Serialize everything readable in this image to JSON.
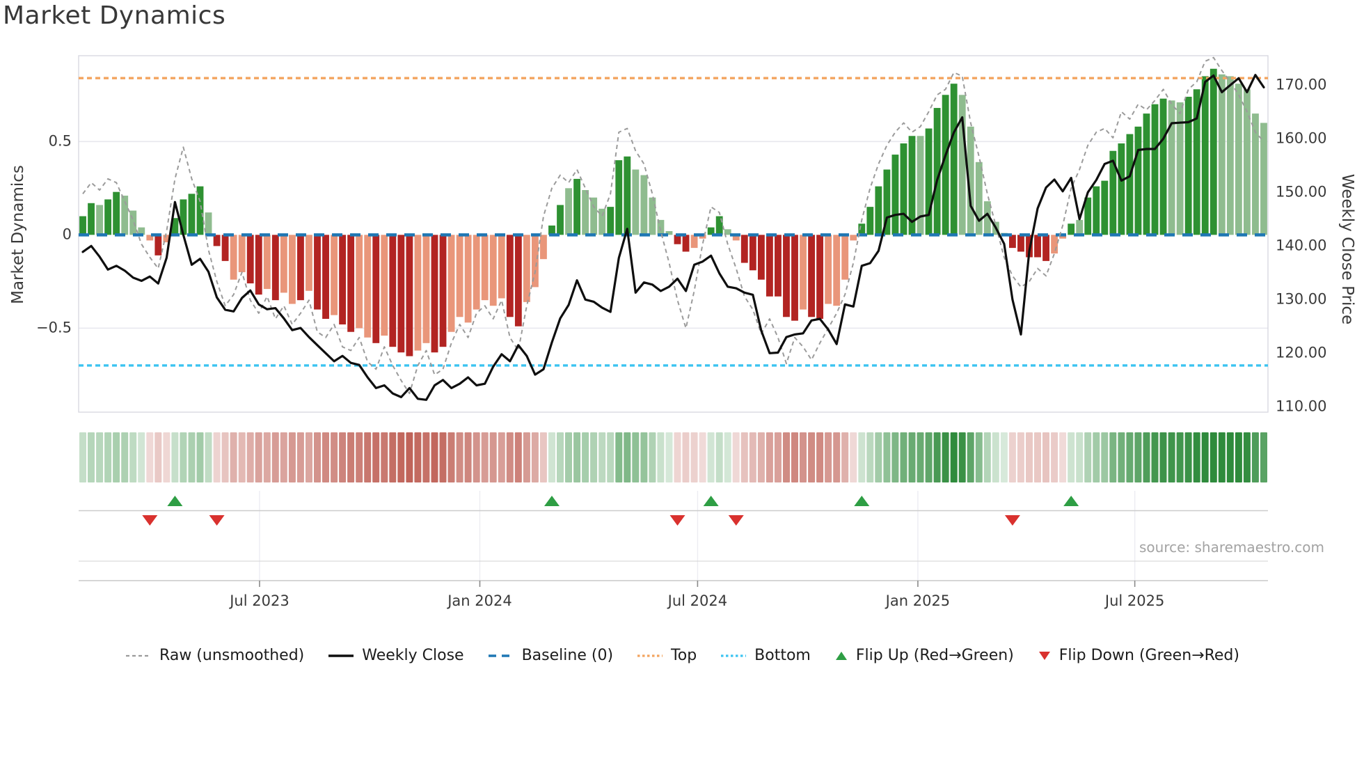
{
  "title": "Market Dynamics",
  "source_credit": "source: sharemaestro.com",
  "axes": {
    "left_label": "Market Dynamics",
    "right_label": "Weekly Close Price",
    "left_ticks": [
      {
        "value": 0.5,
        "label": "0.5"
      },
      {
        "value": 0.0,
        "label": "0"
      },
      {
        "value": -0.5,
        "label": "−0.5"
      }
    ],
    "right_ticks": [
      {
        "value": 170,
        "label": "170.00"
      },
      {
        "value": 160,
        "label": "160.00"
      },
      {
        "value": 150,
        "label": "150.00"
      },
      {
        "value": 140,
        "label": "140.00"
      },
      {
        "value": 130,
        "label": "130.00"
      },
      {
        "value": 120,
        "label": "120.00"
      },
      {
        "value": 110,
        "label": "110.00"
      }
    ],
    "x_ticks": [
      {
        "label": "Jul 2023",
        "week": 21.1
      },
      {
        "label": "Jan 2024",
        "week": 47.4
      },
      {
        "label": "Jul 2024",
        "week": 73.4
      },
      {
        "label": "Jan 2025",
        "week": 99.7
      },
      {
        "label": "Jul 2025",
        "week": 125.6
      }
    ]
  },
  "chart_data": {
    "type": "composite",
    "title": "Market Dynamics",
    "start_date": "2023-02-03",
    "frequency": "weekly",
    "n_weeks": 142,
    "left_ylim": [
      -0.95,
      0.96
    ],
    "right_ylim": [
      109.0,
      175.5
    ],
    "grid": "horizontal at ±0.5 only",
    "legend_position": "bottom center",
    "reference_lines": {
      "baseline": 0.0,
      "top": 0.84,
      "bottom": -0.7
    },
    "series": [
      {
        "name": "Market Dynamics (smoothed oscillator)",
        "type": "bar",
        "axis": "left",
        "values": [
          0.1,
          0.17,
          0.16,
          0.19,
          0.23,
          0.21,
          0.13,
          0.04,
          -0.03,
          -0.11,
          -0.04,
          0.09,
          0.19,
          0.22,
          0.26,
          0.12,
          -0.06,
          -0.14,
          -0.24,
          -0.2,
          -0.26,
          -0.32,
          -0.29,
          -0.35,
          -0.31,
          -0.37,
          -0.35,
          -0.3,
          -0.4,
          -0.45,
          -0.43,
          -0.48,
          -0.52,
          -0.5,
          -0.55,
          -0.58,
          -0.54,
          -0.6,
          -0.63,
          -0.65,
          -0.62,
          -0.58,
          -0.63,
          -0.6,
          -0.52,
          -0.44,
          -0.47,
          -0.4,
          -0.35,
          -0.38,
          -0.34,
          -0.44,
          -0.49,
          -0.36,
          -0.28,
          -0.13,
          0.05,
          0.16,
          0.25,
          0.3,
          0.24,
          0.2,
          0.14,
          0.15,
          0.4,
          0.42,
          0.35,
          0.32,
          0.2,
          0.08,
          0.02,
          -0.05,
          -0.09,
          -0.07,
          -0.02,
          0.04,
          0.1,
          0.03,
          -0.03,
          -0.15,
          -0.19,
          -0.24,
          -0.33,
          -0.33,
          -0.44,
          -0.46,
          -0.4,
          -0.44,
          -0.45,
          -0.37,
          -0.38,
          -0.24,
          -0.03,
          0.06,
          0.15,
          0.26,
          0.35,
          0.43,
          0.49,
          0.53,
          0.53,
          0.57,
          0.68,
          0.75,
          0.81,
          0.75,
          0.58,
          0.39,
          0.18,
          0.07,
          0.01,
          -0.07,
          -0.09,
          -0.12,
          -0.12,
          -0.14,
          -0.1,
          -0.02,
          0.06,
          0.08,
          0.2,
          0.26,
          0.29,
          0.45,
          0.49,
          0.54,
          0.58,
          0.65,
          0.7,
          0.73,
          0.72,
          0.71,
          0.74,
          0.78,
          0.85,
          0.89,
          0.86,
          0.85,
          0.81,
          0.78,
          0.65,
          0.6
        ]
      },
      {
        "name": "Raw (unsmoothed)",
        "type": "line",
        "line_style": "dashed",
        "axis": "left",
        "values": [
          0.22,
          0.28,
          0.24,
          0.3,
          0.28,
          0.18,
          0.08,
          -0.05,
          -0.12,
          -0.18,
          0.02,
          0.3,
          0.47,
          0.3,
          0.18,
          -0.08,
          -0.25,
          -0.38,
          -0.32,
          -0.2,
          -0.35,
          -0.42,
          -0.33,
          -0.45,
          -0.38,
          -0.48,
          -0.42,
          -0.35,
          -0.52,
          -0.55,
          -0.48,
          -0.6,
          -0.62,
          -0.55,
          -0.68,
          -0.72,
          -0.6,
          -0.7,
          -0.78,
          -0.85,
          -0.7,
          -0.62,
          -0.75,
          -0.72,
          -0.58,
          -0.48,
          -0.55,
          -0.42,
          -0.38,
          -0.45,
          -0.35,
          -0.55,
          -0.62,
          -0.38,
          -0.2,
          0.1,
          0.25,
          0.32,
          0.28,
          0.35,
          0.25,
          0.15,
          0.1,
          0.22,
          0.55,
          0.57,
          0.45,
          0.38,
          0.22,
          0.02,
          -0.15,
          -0.35,
          -0.5,
          -0.3,
          -0.05,
          0.15,
          0.12,
          -0.05,
          -0.18,
          -0.33,
          -0.4,
          -0.53,
          -0.45,
          -0.55,
          -0.69,
          -0.55,
          -0.6,
          -0.67,
          -0.58,
          -0.5,
          -0.42,
          -0.32,
          -0.15,
          0.08,
          0.25,
          0.38,
          0.48,
          0.55,
          0.6,
          0.55,
          0.58,
          0.66,
          0.75,
          0.78,
          0.87,
          0.85,
          0.6,
          0.42,
          0.22,
          0.05,
          -0.12,
          -0.22,
          -0.28,
          -0.25,
          -0.18,
          -0.22,
          -0.1,
          0.05,
          0.25,
          0.35,
          0.48,
          0.55,
          0.57,
          0.52,
          0.66,
          0.62,
          0.7,
          0.67,
          0.72,
          0.78,
          0.7,
          0.65,
          0.78,
          0.82,
          0.93,
          0.95,
          0.88,
          0.82,
          0.75,
          0.66,
          0.55,
          0.5
        ]
      },
      {
        "name": "Weekly Close",
        "type": "line",
        "line_style": "solid",
        "axis": "right",
        "values": [
          138.9,
          140.0,
          138.0,
          135.6,
          136.3,
          135.4,
          134.1,
          133.5,
          134.3,
          133.0,
          137.8,
          148.2,
          142.1,
          136.5,
          137.6,
          135.2,
          130.4,
          128.1,
          127.8,
          130.3,
          131.7,
          129.1,
          128.2,
          128.4,
          126.5,
          124.3,
          124.7,
          123.0,
          121.5,
          120.0,
          118.5,
          119.5,
          118.2,
          117.8,
          115.5,
          113.5,
          114.0,
          112.5,
          111.8,
          113.5,
          111.5,
          111.3,
          114.0,
          115.0,
          113.5,
          114.3,
          115.5,
          114.0,
          114.3,
          117.5,
          119.8,
          118.5,
          121.5,
          119.5,
          116.0,
          117.0,
          122.0,
          126.5,
          129.0,
          133.6,
          130.0,
          129.6,
          128.5,
          127.7,
          137.8,
          143.2,
          131.3,
          133.2,
          132.8,
          131.6,
          132.4,
          133.9,
          131.6,
          136.5,
          137.1,
          138.2,
          134.9,
          132.4,
          132.1,
          131.3,
          130.9,
          124.2,
          120.0,
          120.1,
          123.0,
          123.5,
          123.7,
          126.1,
          126.4,
          124.4,
          121.7,
          129.1,
          128.7,
          136.3,
          136.8,
          139.1,
          145.3,
          145.8,
          146.0,
          144.5,
          145.5,
          145.8,
          152.3,
          156.9,
          161.2,
          164.0,
          147.5,
          144.7,
          146.0,
          143.4,
          140.4,
          130.0,
          123.5,
          139.0,
          147.0,
          150.9,
          152.4,
          150.2,
          152.7,
          145.0,
          150.0,
          152.3,
          155.3,
          155.9,
          152.2,
          153.0,
          157.9,
          158.1,
          158.1,
          160.0,
          162.9,
          163.0,
          163.1,
          163.8,
          170.6,
          171.8,
          168.7,
          170.0,
          171.3,
          168.7,
          171.9,
          169.6
        ]
      }
    ],
    "bar_soft_shade": [
      0,
      0,
      1,
      0,
      0,
      1,
      1,
      1,
      1,
      0,
      1,
      0,
      0,
      0,
      0,
      1,
      0,
      0,
      1,
      1,
      0,
      0,
      1,
      0,
      1,
      1,
      0,
      1,
      0,
      0,
      1,
      0,
      0,
      1,
      1,
      0,
      1,
      0,
      0,
      0,
      1,
      1,
      0,
      0,
      1,
      1,
      1,
      1,
      1,
      1,
      1,
      0,
      0,
      1,
      1,
      1,
      0,
      0,
      1,
      0,
      1,
      1,
      1,
      0,
      0,
      0,
      1,
      1,
      1,
      1,
      1,
      0,
      0,
      1,
      1,
      0,
      0,
      1,
      1,
      0,
      0,
      0,
      0,
      0,
      0,
      0,
      1,
      0,
      0,
      1,
      1,
      1,
      1,
      0,
      0,
      0,
      0,
      0,
      0,
      0,
      1,
      0,
      0,
      0,
      0,
      1,
      1,
      1,
      1,
      1,
      1,
      0,
      0,
      0,
      0,
      0,
      1,
      1,
      0,
      1,
      0,
      0,
      0,
      0,
      0,
      0,
      0,
      0,
      0,
      0,
      1,
      1,
      0,
      0,
      0,
      0,
      1,
      1,
      1,
      1,
      1,
      1
    ],
    "flip_up_weeks": [
      11,
      56,
      75,
      93,
      118
    ],
    "flip_down_weeks": [
      8,
      16,
      71,
      78,
      111
    ],
    "heatmap_strip": {
      "derived_from": "bar values (sign = green/red, intensity = |value|)",
      "max_abs": 0.8
    }
  },
  "legend": {
    "items": [
      {
        "id": "raw",
        "label": "Raw (unsmoothed)",
        "marker": "dashed-line",
        "color": "#9b9b9b"
      },
      {
        "id": "close",
        "label": "Weekly Close",
        "marker": "solid-line",
        "color": "#0f0f0f"
      },
      {
        "id": "baseline",
        "label": "Baseline (0)",
        "marker": "long-dash-line",
        "color": "#1f77b4"
      },
      {
        "id": "top",
        "label": "Top",
        "marker": "dotted-line",
        "color": "#f3a45f"
      },
      {
        "id": "bottom",
        "label": "Bottom",
        "marker": "dotted-line",
        "color": "#3cc4f1"
      },
      {
        "id": "flip-up",
        "label": "Flip Up (Red→Green)",
        "marker": "triangle-up",
        "color": "#2e9e44"
      },
      {
        "id": "flip-down",
        "label": "Flip Down (Green→Red)",
        "marker": "triangle-down",
        "color": "#d9312e"
      }
    ]
  },
  "colors": {
    "bar_green": "#2e9132",
    "bar_green_soft": "#8fbc8f",
    "bar_red": "#b22422",
    "bar_red_soft": "#e9967a",
    "baseline": "#1f77b4",
    "top_line": "#f3a45f",
    "bottom_line": "#3cc4f1",
    "raw_line": "#9b9b9b",
    "close_line": "#0f0f0f",
    "flip_up": "#2e9e44",
    "flip_down": "#d9312e",
    "heat_green": "#2f8b3c",
    "heat_red": "#b5483c",
    "grid": "#e7e7ee",
    "spine": "#d8d8e0",
    "axis_text": "#3a3a3a",
    "title_text": "#383838",
    "source_text": "#a3a3a3"
  }
}
